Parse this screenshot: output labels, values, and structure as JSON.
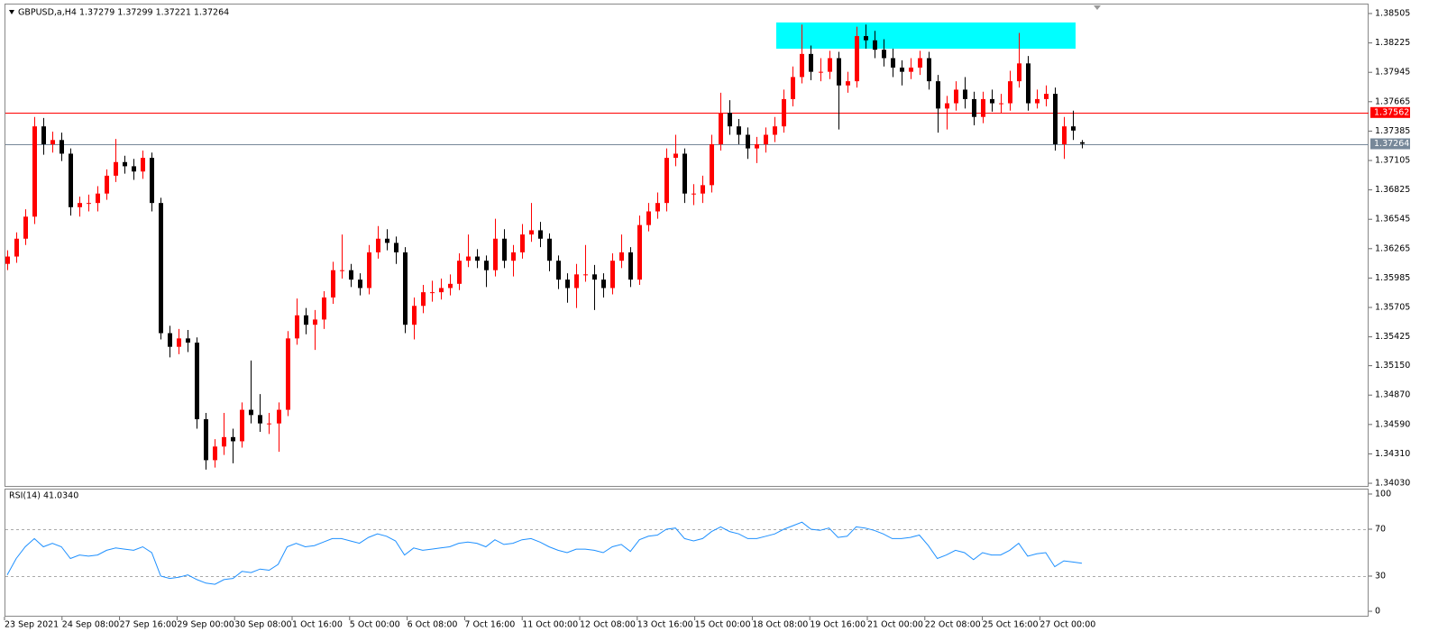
{
  "chart_data": [
    {
      "type": "candlestick",
      "title": "GBPUSD,a,H4  1.37279 1.37299 1.37221 1.37264",
      "bull_color": "#ff0000",
      "bear_color": "#000000",
      "ohlc": [
        [
          1.3612,
          1.3625,
          1.3606,
          1.3619
        ],
        [
          1.3619,
          1.3642,
          1.3613,
          1.3636
        ],
        [
          1.3636,
          1.3664,
          1.363,
          1.3657
        ],
        [
          1.3657,
          1.3752,
          1.365,
          1.3743
        ],
        [
          1.3743,
          1.3751,
          1.3716,
          1.3726
        ],
        [
          1.3726,
          1.3738,
          1.3718,
          1.373
        ],
        [
          1.373,
          1.3737,
          1.371,
          1.3717
        ],
        [
          1.3717,
          1.3722,
          1.3658,
          1.3666
        ],
        [
          1.3666,
          1.3676,
          1.3657,
          1.367
        ],
        [
          1.367,
          1.3678,
          1.3662,
          1.367
        ],
        [
          1.367,
          1.3686,
          1.3662,
          1.3679
        ],
        [
          1.3679,
          1.3702,
          1.3673,
          1.3696
        ],
        [
          1.3696,
          1.3731,
          1.369,
          1.3709
        ],
        [
          1.3709,
          1.3715,
          1.3698,
          1.3705
        ],
        [
          1.3705,
          1.3712,
          1.3692,
          1.37
        ],
        [
          1.37,
          1.372,
          1.3693,
          1.3713
        ],
        [
          1.3713,
          1.3718,
          1.3662,
          1.367
        ],
        [
          1.367,
          1.3675,
          1.354,
          1.3546
        ],
        [
          1.3546,
          1.3553,
          1.3523,
          1.3533
        ],
        [
          1.3533,
          1.355,
          1.3526,
          1.3541
        ],
        [
          1.3541,
          1.3549,
          1.3528,
          1.3537
        ],
        [
          1.3537,
          1.3542,
          1.3455,
          1.3464
        ],
        [
          1.3464,
          1.347,
          1.3416,
          1.3425
        ],
        [
          1.3425,
          1.3445,
          1.3418,
          1.3438
        ],
        [
          1.3438,
          1.347,
          1.343,
          1.3447
        ],
        [
          1.3447,
          1.3455,
          1.3422,
          1.3443
        ],
        [
          1.3443,
          1.348,
          1.3437,
          1.3473
        ],
        [
          1.3473,
          1.352,
          1.346,
          1.3468
        ],
        [
          1.3468,
          1.3488,
          1.3452,
          1.346
        ],
        [
          1.346,
          1.347,
          1.345,
          1.346
        ],
        [
          1.346,
          1.348,
          1.3433,
          1.3473
        ],
        [
          1.3473,
          1.3548,
          1.3467,
          1.3541
        ],
        [
          1.3541,
          1.3579,
          1.3535,
          1.3563
        ],
        [
          1.3563,
          1.357,
          1.3545,
          1.3554
        ],
        [
          1.3554,
          1.3568,
          1.353,
          1.3559
        ],
        [
          1.3559,
          1.3586,
          1.355,
          1.358
        ],
        [
          1.358,
          1.3614,
          1.3574,
          1.3606
        ],
        [
          1.3606,
          1.364,
          1.3598,
          1.3606
        ],
        [
          1.3606,
          1.3612,
          1.359,
          1.3597
        ],
        [
          1.3597,
          1.3603,
          1.3582,
          1.3589
        ],
        [
          1.3589,
          1.363,
          1.3583,
          1.3623
        ],
        [
          1.3623,
          1.3648,
          1.3617,
          1.3636
        ],
        [
          1.3636,
          1.3645,
          1.3625,
          1.3632
        ],
        [
          1.3632,
          1.3638,
          1.3612,
          1.3623
        ],
        [
          1.3623,
          1.3628,
          1.3546,
          1.3554
        ],
        [
          1.3554,
          1.358,
          1.354,
          1.3572
        ],
        [
          1.3572,
          1.3592,
          1.3565,
          1.3585
        ],
        [
          1.3585,
          1.3596,
          1.3576,
          1.3585
        ],
        [
          1.3585,
          1.3598,
          1.3578,
          1.3589
        ],
        [
          1.3589,
          1.3602,
          1.3582,
          1.3593
        ],
        [
          1.3593,
          1.3622,
          1.3587,
          1.3615
        ],
        [
          1.3615,
          1.364,
          1.3609,
          1.3619
        ],
        [
          1.3619,
          1.3626,
          1.3608,
          1.3615
        ],
        [
          1.3615,
          1.362,
          1.359,
          1.3606
        ],
        [
          1.3606,
          1.3655,
          1.36,
          1.3636
        ],
        [
          1.3636,
          1.3645,
          1.3608,
          1.3615
        ],
        [
          1.3615,
          1.363,
          1.36,
          1.3623
        ],
        [
          1.3623,
          1.365,
          1.3617,
          1.364
        ],
        [
          1.364,
          1.367,
          1.3633,
          1.3644
        ],
        [
          1.3644,
          1.3652,
          1.3628,
          1.3636
        ],
        [
          1.3636,
          1.3641,
          1.3605,
          1.3615
        ],
        [
          1.3615,
          1.362,
          1.3588,
          1.3597
        ],
        [
          1.3597,
          1.3603,
          1.3575,
          1.3589
        ],
        [
          1.3589,
          1.3612,
          1.357,
          1.3602
        ],
        [
          1.3602,
          1.363,
          1.3595,
          1.3602
        ],
        [
          1.3602,
          1.3611,
          1.3568,
          1.3597
        ],
        [
          1.3597,
          1.3603,
          1.358,
          1.3589
        ],
        [
          1.3589,
          1.3622,
          1.3583,
          1.3615
        ],
        [
          1.3615,
          1.364,
          1.3608,
          1.3623
        ],
        [
          1.3623,
          1.3628,
          1.359,
          1.3597
        ],
        [
          1.3597,
          1.3658,
          1.3592,
          1.3649
        ],
        [
          1.3649,
          1.367,
          1.3643,
          1.3662
        ],
        [
          1.3662,
          1.368,
          1.3655,
          1.367
        ],
        [
          1.367,
          1.3722,
          1.3662,
          1.3713
        ],
        [
          1.3713,
          1.3735,
          1.3705,
          1.3717
        ],
        [
          1.3717,
          1.3722,
          1.367,
          1.3679
        ],
        [
          1.3679,
          1.3688,
          1.3668,
          1.3679
        ],
        [
          1.3679,
          1.3696,
          1.367,
          1.3687
        ],
        [
          1.3687,
          1.3735,
          1.368,
          1.3726
        ],
        [
          1.3726,
          1.3775,
          1.372,
          1.3756
        ],
        [
          1.3756,
          1.3768,
          1.3735,
          1.3743
        ],
        [
          1.3743,
          1.375,
          1.3726,
          1.3735
        ],
        [
          1.3735,
          1.3742,
          1.3712,
          1.3722
        ],
        [
          1.3722,
          1.3733,
          1.3708,
          1.3726
        ],
        [
          1.3726,
          1.3742,
          1.3718,
          1.3735
        ],
        [
          1.3735,
          1.3752,
          1.3728,
          1.3743
        ],
        [
          1.3743,
          1.3778,
          1.3737,
          1.3769
        ],
        [
          1.3769,
          1.38,
          1.3762,
          1.379
        ],
        [
          1.379,
          1.384,
          1.3784,
          1.3812
        ],
        [
          1.3812,
          1.382,
          1.3787,
          1.3795
        ],
        [
          1.3795,
          1.3808,
          1.3786,
          1.3795
        ],
        [
          1.3795,
          1.3815,
          1.3788,
          1.3808
        ],
        [
          1.3808,
          1.3814,
          1.374,
          1.3782
        ],
        [
          1.3782,
          1.3795,
          1.3775,
          1.3786
        ],
        [
          1.3786,
          1.3838,
          1.378,
          1.3829
        ],
        [
          1.3829,
          1.384,
          1.3817,
          1.3825
        ],
        [
          1.3825,
          1.3834,
          1.3808,
          1.3816
        ],
        [
          1.3816,
          1.3826,
          1.38,
          1.3808
        ],
        [
          1.3808,
          1.3817,
          1.379,
          1.3799
        ],
        [
          1.3799,
          1.3806,
          1.3782,
          1.3795
        ],
        [
          1.3795,
          1.3808,
          1.3788,
          1.3799
        ],
        [
          1.3799,
          1.3815,
          1.3792,
          1.3808
        ],
        [
          1.3808,
          1.3814,
          1.3778,
          1.3786
        ],
        [
          1.3786,
          1.3792,
          1.3737,
          1.376
        ],
        [
          1.376,
          1.3772,
          1.374,
          1.3765
        ],
        [
          1.3765,
          1.3786,
          1.3758,
          1.3778
        ],
        [
          1.3778,
          1.379,
          1.376,
          1.3769
        ],
        [
          1.3769,
          1.3776,
          1.3744,
          1.3752
        ],
        [
          1.3752,
          1.3776,
          1.3746,
          1.3769
        ],
        [
          1.3769,
          1.3778,
          1.3757,
          1.3765
        ],
        [
          1.3765,
          1.3774,
          1.3756,
          1.3765
        ],
        [
          1.3765,
          1.3796,
          1.3758,
          1.3786
        ],
        [
          1.3786,
          1.3832,
          1.378,
          1.3803
        ],
        [
          1.3803,
          1.381,
          1.3758,
          1.3765
        ],
        [
          1.3765,
          1.3778,
          1.376,
          1.3769
        ],
        [
          1.3769,
          1.3782,
          1.3762,
          1.3774
        ],
        [
          1.3774,
          1.378,
          1.372,
          1.3726
        ],
        [
          1.3726,
          1.3752,
          1.3712,
          1.3743
        ],
        [
          1.3743,
          1.3758,
          1.373,
          1.3739
        ],
        [
          1.37279,
          1.37299,
          1.37221,
          1.37264
        ]
      ],
      "ylim": [
        1.33996,
        1.38591
      ],
      "yticks": [
        1.38505,
        1.38225,
        1.37945,
        1.37665,
        1.37385,
        1.37105,
        1.36825,
        1.36545,
        1.36265,
        1.35985,
        1.35705,
        1.35425,
        {
          "value": 1.3515,
          "label": "1.35150"
        },
        {
          "value": 1.3487,
          "label": "1.34870"
        },
        {
          "value": 1.3459,
          "label": "1.34590"
        },
        {
          "value": 1.3431,
          "label": "1.34310"
        },
        {
          "value": 1.3403,
          "label": "1.34030"
        }
      ],
      "price_lines": [
        {
          "value": 1.37562,
          "color": "#ff0000"
        },
        {
          "value": 1.37264,
          "color": "#778899"
        }
      ],
      "zone": {
        "range": [
          1.3817,
          1.3842
        ],
        "color": "#00ffff"
      },
      "x_labels": [
        "23 Sep 2021",
        "24 Sep 08:00",
        "27 Sep 16:00",
        "29 Sep 00:00",
        "30 Sep 08:00",
        "1 Oct 16:00",
        "5 Oct 00:00",
        "6 Oct 08:00",
        "7 Oct 16:00",
        "11 Oct 00:00",
        "12 Oct 08:00",
        "13 Oct 16:00",
        "15 Oct 00:00",
        "18 Oct 08:00",
        "19 Oct 16:00",
        "21 Oct 00:00",
        "22 Oct 08:00",
        "25 Oct 16:00",
        "27 Oct 00:00"
      ]
    },
    {
      "type": "line",
      "title": "RSI(14) 41.0340",
      "color": "#1e90ff",
      "values": [
        31,
        45,
        55,
        62,
        55,
        58,
        55,
        45,
        48,
        47,
        48,
        52,
        54,
        53,
        52,
        55,
        50,
        30,
        28,
        29,
        31,
        27,
        24,
        23,
        27,
        28,
        34,
        33,
        36,
        35,
        40,
        55,
        58,
        55,
        56,
        59,
        62,
        62,
        60,
        58,
        63,
        66,
        64,
        60,
        48,
        54,
        52,
        53,
        54,
        55,
        58,
        59,
        58,
        55,
        61,
        57,
        58,
        61,
        62,
        59,
        55,
        52,
        50,
        53,
        53,
        52,
        50,
        55,
        57,
        51,
        61,
        64,
        65,
        70,
        71,
        62,
        60,
        62,
        68,
        72,
        68,
        66,
        62,
        62,
        64,
        66,
        70,
        73,
        76,
        70,
        69,
        71,
        63,
        64,
        72,
        71,
        69,
        66,
        62,
        62,
        63,
        65,
        56,
        45,
        48,
        52,
        50,
        44,
        50,
        48,
        48,
        52,
        58,
        47,
        49,
        50,
        38,
        43,
        42,
        41.034
      ],
      "ylim": [
        -4.6,
        104.6
      ],
      "yticks": [
        100,
        70,
        30,
        0
      ],
      "levels": [
        70,
        30
      ]
    }
  ]
}
